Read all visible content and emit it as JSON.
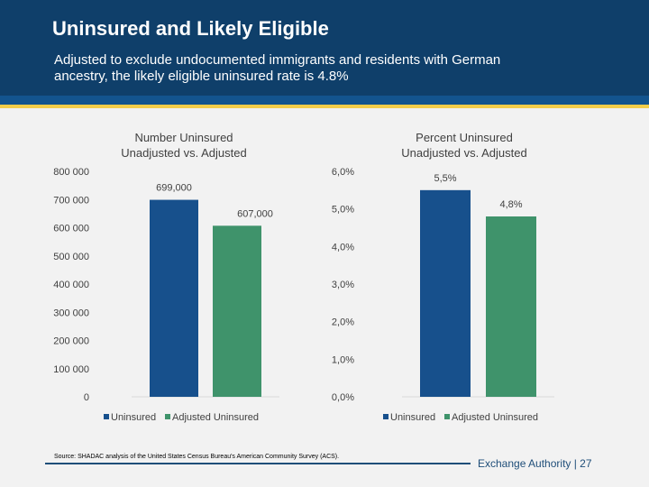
{
  "header": {
    "title": "Uninsured and Likely Eligible",
    "subtitle": "Adjusted to exclude undocumented immigrants and residents with German ancestry, the likely eligible uninsured rate is 4.8%"
  },
  "colors": {
    "uninsured": "#17508c",
    "adjusted": "#3f936b"
  },
  "chart_data": [
    {
      "type": "bar",
      "title": [
        "Number Uninsured",
        "Unadjusted vs. Adjusted"
      ],
      "categories": [
        "Uninsured",
        "Adjusted Uninsured"
      ],
      "values": [
        699000,
        607000
      ],
      "data_labels": [
        "699,000",
        "607,000"
      ],
      "ylim": [
        0,
        800000
      ],
      "yticks": [
        "0",
        "100 000",
        "200 000",
        "300 000",
        "400 000",
        "500 000",
        "600 000",
        "700 000",
        "800 000"
      ],
      "legend": [
        "Uninsured",
        "Adjusted Uninsured"
      ],
      "legend_position": "bottom"
    },
    {
      "type": "bar",
      "title": [
        "Percent Uninsured",
        "Unadjusted vs. Adjusted"
      ],
      "categories": [
        "Uninsured",
        "Adjusted Uninsured"
      ],
      "values": [
        5.5,
        4.8
      ],
      "data_labels": [
        "5,5%",
        "4,8%"
      ],
      "ylim": [
        0,
        6
      ],
      "yticks": [
        "0,0%",
        "1,0%",
        "2,0%",
        "3,0%",
        "4,0%",
        "5,0%",
        "6,0%"
      ],
      "legend": [
        "Uninsured",
        "Adjusted Uninsured"
      ],
      "legend_position": "bottom"
    }
  ],
  "footer": {
    "source": "Source: SHADAC analysis of the United States Census Bureau's American Community Survey (ACS).",
    "org": "Exchange Authority  |  27"
  }
}
